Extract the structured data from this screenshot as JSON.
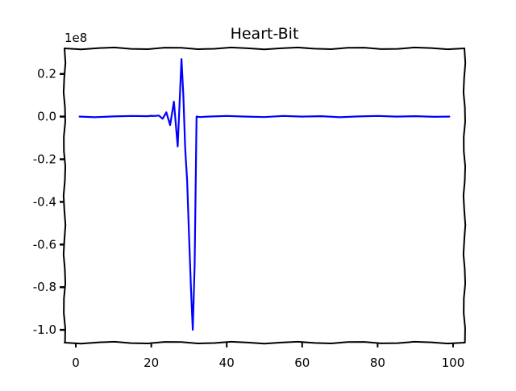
{
  "chart_data": {
    "type": "line",
    "title": "Heart-Bit",
    "xlabel": "",
    "ylabel": "",
    "y_multiplier_label": "1e8",
    "xlim": [
      -3,
      103
    ],
    "ylim": [
      -1.06,
      0.32
    ],
    "x_ticks": [
      0,
      20,
      40,
      60,
      80,
      100
    ],
    "x_tick_labels": [
      "0",
      "20",
      "40",
      "60",
      "80",
      "100"
    ],
    "y_ticks": [
      0.2,
      0.0,
      -0.2,
      -0.4,
      -0.6,
      -0.8,
      -1.0
    ],
    "y_tick_labels": [
      "0.2",
      "0.0",
      "-0.2",
      "-0.4",
      "-0.6",
      "-0.8",
      "-1.0"
    ],
    "grid": false,
    "series": [
      {
        "color": "#0000ff",
        "x": [
          1,
          5,
          10,
          15,
          19,
          20,
          21,
          22,
          23,
          24,
          25,
          26,
          27,
          28,
          28.5,
          29,
          29.5,
          30,
          30.5,
          31,
          31.5,
          32,
          33,
          35,
          40,
          45,
          50,
          55,
          60,
          65,
          70,
          75,
          80,
          85,
          90,
          95,
          99
        ],
        "y": [
          0.0,
          -0.003,
          0.001,
          0.003,
          0.002,
          0.004,
          0.003,
          0.005,
          -0.01,
          0.02,
          -0.04,
          0.07,
          -0.14,
          0.27,
          0.1,
          -0.15,
          -0.3,
          -0.55,
          -0.8,
          -1.0,
          -0.7,
          0.0,
          -0.002,
          0.0,
          0.003,
          0.0,
          -0.002,
          0.003,
          0.0,
          0.002,
          -0.003,
          0.001,
          0.003,
          0.0,
          0.002,
          -0.001,
          0.0
        ]
      }
    ]
  }
}
